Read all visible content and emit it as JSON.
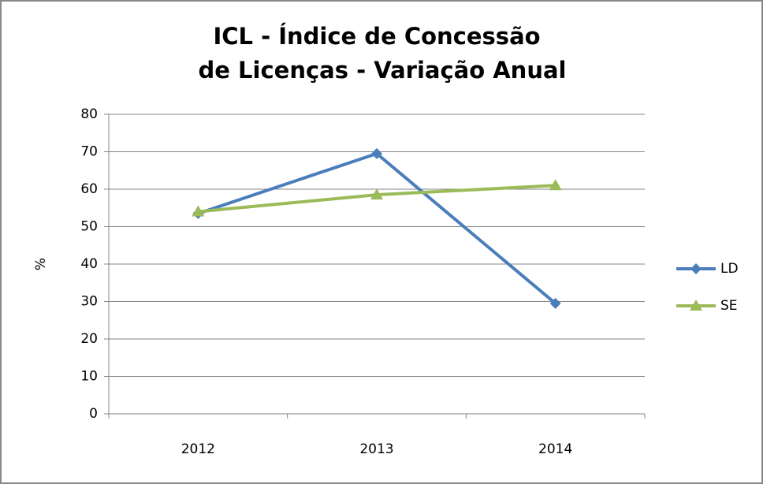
{
  "chart_data": {
    "type": "line",
    "title": [
      "ICL - Índice de Concessão",
      "de Licenças - Variação  Anual"
    ],
    "y_label": "%",
    "categories": [
      "2012",
      "2013",
      "2014"
    ],
    "series": [
      {
        "name": "LD",
        "color": "#4a7ebb",
        "marker": "diamond",
        "values": [
          53.5,
          69.5,
          29.5
        ]
      },
      {
        "name": "SE",
        "color": "#9bbb59",
        "marker": "triangle",
        "values": [
          54,
          58.5,
          61
        ]
      }
    ],
    "ylim": [
      0,
      80
    ],
    "yticks": [
      0,
      10,
      20,
      30,
      40,
      50,
      60,
      70,
      80
    ],
    "grid": true,
    "legend": "right"
  }
}
